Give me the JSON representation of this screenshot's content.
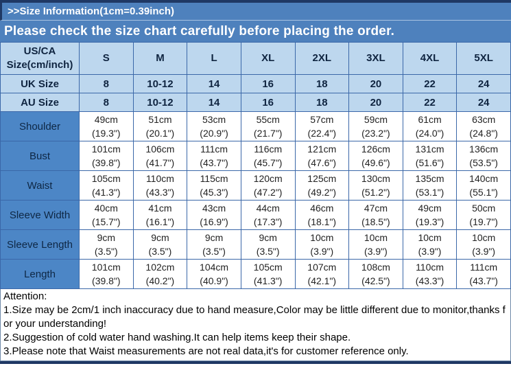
{
  "page": {
    "title": ">>Size Information(1cm=0.39inch)",
    "banner": "Please check the size chart carefully before placing the order."
  },
  "colors": {
    "banner_blue": "#4E81BD",
    "label_cell_blue": "#4C86C6",
    "header_light_blue": "#BDD7EE",
    "table_border_blue": "#3A67A8",
    "frame_navy": "#1F3864"
  },
  "size_chart": {
    "corner_header": "US/CA\nSize(cm/inch)",
    "size_headers": [
      "S",
      "M",
      "L",
      "XL",
      "2XL",
      "3XL",
      "4XL",
      "5XL"
    ],
    "region_rows": [
      {
        "label": "UK Size",
        "values": [
          "8",
          "10-12",
          "14",
          "16",
          "18",
          "20",
          "22",
          "24"
        ]
      },
      {
        "label": "AU Size",
        "values": [
          "8",
          "10-12",
          "14",
          "16",
          "18",
          "20",
          "22",
          "24"
        ]
      }
    ],
    "measurement_rows": [
      {
        "label": "Shoulder",
        "values": [
          "49cm\n(19.3\")",
          "51cm\n(20.1\")",
          "53cm\n(20.9\")",
          "55cm\n(21.7\")",
          "57cm\n(22.4\")",
          "59cm\n(23.2\")",
          "61cm\n(24.0\")",
          "63cm\n(24.8\")"
        ]
      },
      {
        "label": "Bust",
        "values": [
          "101cm\n(39.8\")",
          "106cm\n(41.7\")",
          "111cm\n(43.7\")",
          "116cm\n(45.7\")",
          "121cm\n(47.6\")",
          "126cm\n(49.6\")",
          "131cm\n(51.6\")",
          "136cm\n(53.5\")"
        ]
      },
      {
        "label": "Waist",
        "values": [
          "105cm\n(41.3\")",
          "110cm\n(43.3\")",
          "115cm\n(45.3\")",
          "120cm\n(47.2\")",
          "125cm\n(49.2\")",
          "130cm\n(51.2\")",
          "135cm\n(53.1\")",
          "140cm\n(55.1\")"
        ]
      },
      {
        "label": "Sleeve Width",
        "values": [
          "40cm\n(15.7\")",
          "41cm\n(16.1\")",
          "43cm\n(16.9\")",
          "44cm\n(17.3\")",
          "46cm\n(18.1\")",
          "47cm\n(18.5\")",
          "49cm\n(19.3\")",
          "50cm\n(19.7\")"
        ]
      },
      {
        "label": "Sleeve Length",
        "values": [
          "9cm\n(3.5\")",
          "9cm\n(3.5\")",
          "9cm\n(3.5\")",
          "9cm\n(3.5\")",
          "10cm\n(3.9\")",
          "10cm\n(3.9\")",
          "10cm\n(3.9\")",
          "10cm\n(3.9\")"
        ]
      },
      {
        "label": "Length",
        "values": [
          "101cm\n(39.8\")",
          "102cm\n(40.2\")",
          "104cm\n(40.9\")",
          "105cm\n(41.3\")",
          "107cm\n(42.1\")",
          "108cm\n(42.5\")",
          "110cm\n(43.3\")",
          "111cm\n(43.7\")"
        ]
      }
    ]
  },
  "attention": {
    "title": "Attention:",
    "notes": [
      "1.Size may be 2cm/1 inch inaccuracy due to hand measure,Color may be little different due to monitor,thanks for your understanding!",
      "2.Suggestion of cold water hand washing.It can help items keep their shape.",
      "3.Please note that Waist measurements are not real data,it's for customer reference only."
    ]
  }
}
